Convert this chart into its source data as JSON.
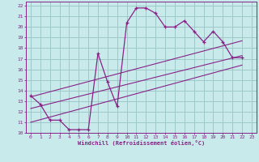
{
  "bg_color": "#c8eaea",
  "line_color": "#882288",
  "grid_color": "#9ec8c8",
  "xlabel": "Windchill (Refroidissement éolien,°C)",
  "xlim": [
    -0.5,
    23.5
  ],
  "ylim": [
    10,
    22.4
  ],
  "xticks": [
    0,
    1,
    2,
    3,
    4,
    5,
    6,
    7,
    8,
    9,
    10,
    11,
    12,
    13,
    14,
    15,
    16,
    17,
    18,
    19,
    20,
    21,
    22,
    23
  ],
  "yticks": [
    10,
    11,
    12,
    13,
    14,
    15,
    16,
    17,
    18,
    19,
    20,
    21,
    22
  ],
  "series": [
    {
      "x": [
        0,
        1,
        2,
        3,
        4,
        5,
        6,
        7,
        8,
        9,
        10,
        11,
        12,
        13,
        14,
        15,
        16,
        17,
        18,
        19,
        20,
        21,
        22
      ],
      "y": [
        13.5,
        12.7,
        11.2,
        11.2,
        10.3,
        10.3,
        10.3,
        17.5,
        14.8,
        12.5,
        20.4,
        21.8,
        21.8,
        21.3,
        20.0,
        20.0,
        20.6,
        19.6,
        18.6,
        19.6,
        18.6,
        17.1,
        17.1
      ]
    },
    {
      "x": [
        0,
        22
      ],
      "y": [
        11.0,
        16.4
      ]
    },
    {
      "x": [
        0,
        22
      ],
      "y": [
        12.3,
        17.3
      ]
    },
    {
      "x": [
        0,
        22
      ],
      "y": [
        13.4,
        18.7
      ]
    }
  ]
}
